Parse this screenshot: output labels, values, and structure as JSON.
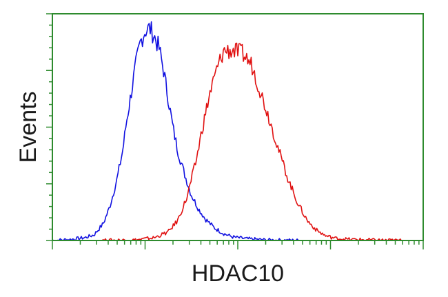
{
  "chart_data": {
    "type": "line",
    "title": "",
    "xlabel": "HDAC10",
    "ylabel": "Events",
    "xscale": "log",
    "xlim": [
      0,
      4
    ],
    "ylim": [
      0,
      4
    ],
    "grid": false,
    "legend": "none",
    "frame_color": "#2e8b2e",
    "series": [
      {
        "color": "#1010e0",
        "x": [
          0.0,
          0.2,
          0.35,
          0.45,
          0.55,
          0.62,
          0.7,
          0.76,
          0.8,
          0.85,
          0.9,
          0.95,
          1.0,
          1.05,
          1.1,
          1.15,
          1.2,
          1.25,
          1.3,
          1.35,
          1.42,
          1.5,
          1.58,
          1.65,
          1.75,
          1.85,
          1.95,
          2.1,
          2.3,
          2.5,
          2.7
        ],
        "y": [
          0.0,
          0.02,
          0.05,
          0.1,
          0.3,
          0.6,
          1.1,
          1.6,
          2.1,
          2.6,
          3.1,
          3.5,
          3.7,
          3.75,
          3.6,
          3.4,
          3.0,
          2.5,
          2.0,
          1.6,
          1.2,
          0.8,
          0.55,
          0.38,
          0.22,
          0.12,
          0.06,
          0.03,
          0.01,
          0.005,
          0.0
        ]
      },
      {
        "color": "#e01010",
        "x": [
          0.5,
          0.9,
          1.1,
          1.25,
          1.35,
          1.45,
          1.55,
          1.62,
          1.7,
          1.78,
          1.85,
          1.95,
          2.05,
          2.15,
          2.25,
          2.35,
          2.45,
          2.55,
          2.65,
          2.75,
          2.85,
          2.95,
          3.05,
          3.2,
          3.4,
          3.6,
          3.8
        ],
        "y": [
          0.0,
          0.01,
          0.05,
          0.15,
          0.35,
          0.75,
          1.4,
          2.0,
          2.6,
          3.05,
          3.35,
          3.35,
          3.3,
          3.1,
          2.6,
          2.1,
          1.55,
          1.05,
          0.65,
          0.35,
          0.18,
          0.08,
          0.04,
          0.02,
          0.01,
          0.005,
          0.0
        ]
      }
    ]
  }
}
